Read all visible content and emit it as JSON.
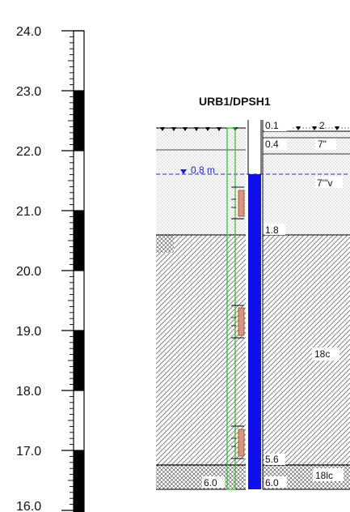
{
  "title": "URB1/DPSH1",
  "scale": {
    "ticks": [
      "24.0",
      "23.0",
      "22.0",
      "21.0",
      "20.0",
      "19.0",
      "18.0",
      "17.0",
      "16.0"
    ]
  },
  "water_level": {
    "label": "0.8 m",
    "color": "#1a1adf"
  },
  "right_depth_labels": [
    "0.1",
    "0.4",
    "1.8",
    "5.6",
    "6.0"
  ],
  "left_depth_label": "6.0",
  "layer_codes": [
    "2",
    "7\"",
    "7'''v",
    "18c",
    "18lc"
  ],
  "colors": {
    "casing": "#1010ee",
    "green_outline": "#2fbf2f",
    "sample": "#d9967a"
  }
}
